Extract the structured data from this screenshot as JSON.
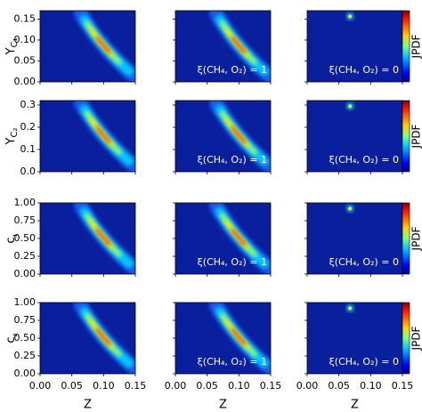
{
  "chart_data": [
    {
      "type": "heatmap",
      "ylabel": "Y",
      "ylabel_sub": "C₁",
      "ylim": [
        0,
        0.17
      ],
      "yticks": [
        {
          "value": 0,
          "label": "0.00"
        },
        {
          "value": 0.05,
          "label": "0.05"
        },
        {
          "value": 0.1,
          "label": "0.10"
        },
        {
          "value": 0.15,
          "label": "0.15"
        }
      ],
      "annotations": [
        "ξ(CH₄, O₂) = 1",
        "ξ(CH₄, O₂) = 0"
      ],
      "colorbar_label": "JPDF"
    },
    {
      "type": "heatmap",
      "ylabel": "Y",
      "ylabel_sub": "C₂",
      "ylim": [
        0,
        0.32
      ],
      "yticks": [
        {
          "value": 0,
          "label": "0.0"
        },
        {
          "value": 0.1,
          "label": "0.1"
        },
        {
          "value": 0.2,
          "label": "0.2"
        },
        {
          "value": 0.3,
          "label": "0.3"
        }
      ],
      "annotations": [
        "ξ(CH₄, O₂) = 1",
        "ξ(CH₄, O₂) = 0"
      ],
      "colorbar_label": "JPDF"
    },
    {
      "type": "heatmap",
      "ylabel": "c",
      "ylabel_sub": "₁",
      "ylim": [
        0,
        1
      ],
      "yticks": [
        {
          "value": 0,
          "label": "0.00"
        },
        {
          "value": 0.25,
          "label": "0.25"
        },
        {
          "value": 0.5,
          "label": "0.50"
        },
        {
          "value": 0.75,
          "label": "0.75"
        },
        {
          "value": 1,
          "label": "1.00"
        }
      ],
      "annotations": [
        "ξ(CH₄, O₂) = 1",
        "ξ(CH₄, O₂) = 0"
      ],
      "colorbar_label": "JPDF"
    },
    {
      "type": "heatmap",
      "ylabel": "c",
      "ylabel_sub": "₂",
      "ylim": [
        0,
        1
      ],
      "yticks": [
        {
          "value": 0,
          "label": "0.00"
        },
        {
          "value": 0.25,
          "label": "0.25"
        },
        {
          "value": 0.5,
          "label": "0.50"
        },
        {
          "value": 0.75,
          "label": "0.75"
        },
        {
          "value": 1,
          "label": "1.00"
        }
      ],
      "annotations": [
        "ξ(CH₄, O₂) = 1",
        "ξ(CH₄, O₂) = 0"
      ],
      "colorbar_label": "JPDF",
      "xlabel": "Z",
      "xlim": [
        0,
        0.15
      ],
      "xticks": [
        {
          "value": 0,
          "label": "0.00"
        },
        {
          "value": 0.05,
          "label": "0.05"
        },
        {
          "value": 0.1,
          "label": "0.10"
        },
        {
          "value": 0.15,
          "label": "0.15"
        }
      ]
    }
  ]
}
